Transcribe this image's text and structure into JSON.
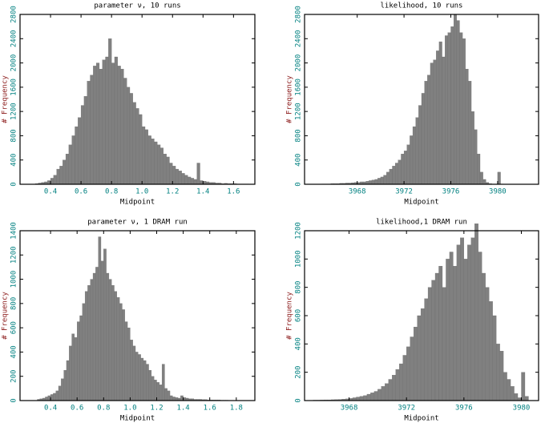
{
  "chart_data": [
    {
      "type": "histogram",
      "title": "parameter ν, 10 runs",
      "x_label": "Midpoint",
      "y_label": "# Frequency",
      "color": "#808080",
      "bins": [
        0.3,
        0.32,
        0.34,
        0.36,
        0.38,
        0.4,
        0.42,
        0.44,
        0.46,
        0.48,
        0.5,
        0.52,
        0.54,
        0.56,
        0.58,
        0.6,
        0.62,
        0.64,
        0.66,
        0.68,
        0.7,
        0.72,
        0.74,
        0.76,
        0.78,
        0.8,
        0.82,
        0.84,
        0.86,
        0.88,
        0.9,
        0.92,
        0.94,
        0.96,
        0.98,
        1,
        1.02,
        1.04,
        1.06,
        1.08,
        1.1,
        1.12,
        1.14,
        1.16,
        1.18,
        1.2,
        1.22,
        1.24,
        1.26,
        1.28,
        1.3,
        1.32,
        1.34,
        1.36,
        1.38,
        1.4,
        1.42,
        1.44,
        1.46,
        1.48,
        1.5,
        1.52,
        1.54,
        1.56,
        1.58,
        1.6,
        1.62,
        1.64,
        1.66,
        1.68,
        1.7
      ],
      "values": [
        10,
        20,
        30,
        40,
        60,
        100,
        150,
        250,
        300,
        400,
        500,
        650,
        800,
        950,
        1100,
        1300,
        1450,
        1700,
        1800,
        1950,
        2000,
        1900,
        2050,
        2100,
        2400,
        2000,
        2100,
        1950,
        1900,
        1750,
        1600,
        1500,
        1350,
        1250,
        1150,
        950,
        900,
        800,
        750,
        700,
        650,
        600,
        500,
        450,
        350,
        300,
        250,
        220,
        180,
        150,
        120,
        100,
        80,
        350,
        60,
        50,
        40,
        30,
        30,
        20,
        20,
        10,
        15,
        10,
        10,
        10,
        5,
        5,
        5,
        5
      ],
      "xlim": [
        0.2,
        1.74
      ],
      "xticks": [
        0.4,
        0.6,
        0.8,
        {
          "value": 1,
          "label": "1.0"
        },
        1.2,
        1.4,
        1.6
      ],
      "ylim": [
        0,
        2800
      ],
      "yticks": [
        0,
        400,
        800,
        1200,
        1600,
        2000,
        2400,
        2800
      ]
    },
    {
      "type": "histogram",
      "title": "likelihood, 10 runs",
      "x_label": "Midpoint",
      "y_label": "# Frequency",
      "color": "#808080",
      "bins": [
        3965,
        3965.25,
        3965.5,
        3965.75,
        3966,
        3966.25,
        3966.5,
        3966.75,
        3967,
        3967.25,
        3967.5,
        3967.75,
        3968,
        3968.25,
        3968.5,
        3968.75,
        3969,
        3969.25,
        3969.5,
        3969.75,
        3970,
        3970.25,
        3970.5,
        3970.75,
        3971,
        3971.25,
        3971.5,
        3971.75,
        3972,
        3972.25,
        3972.5,
        3972.75,
        3973,
        3973.25,
        3973.5,
        3973.75,
        3974,
        3974.25,
        3974.5,
        3974.75,
        3975,
        3975.25,
        3975.5,
        3975.75,
        3976,
        3976.25,
        3976.5,
        3976.75,
        3977,
        3977.25,
        3977.5,
        3977.75,
        3978,
        3978.25,
        3978.5,
        3978.75,
        3979,
        3979.25,
        3979.5,
        3979.75,
        3980,
        3980.25,
        3980.5
      ],
      "values": [
        5,
        5,
        5,
        10,
        10,
        10,
        15,
        15,
        20,
        20,
        25,
        30,
        30,
        40,
        40,
        50,
        60,
        70,
        80,
        100,
        120,
        150,
        200,
        250,
        300,
        350,
        400,
        500,
        550,
        650,
        800,
        950,
        1100,
        1300,
        1500,
        1700,
        1800,
        2000,
        2050,
        2200,
        2350,
        2100,
        2450,
        2500,
        2600,
        2800,
        2700,
        2500,
        2400,
        1900,
        1700,
        1200,
        900,
        500,
        200,
        80,
        30,
        10,
        5,
        5,
        200,
        5
      ],
      "xlim": [
        3963.5,
        3983.5
      ],
      "xticks": [
        3968,
        3972,
        3976,
        3980
      ],
      "ylim": [
        0,
        2800
      ],
      "yticks": [
        0,
        400,
        800,
        1200,
        1600,
        2000,
        2400,
        2800
      ]
    },
    {
      "type": "histogram",
      "title": "parameter ν, 1 DRAM run",
      "x_label": "Midpoint",
      "y_label": "# Frequency",
      "color": "#808080",
      "bins": [
        0.3,
        0.32,
        0.34,
        0.36,
        0.38,
        0.4,
        0.42,
        0.44,
        0.46,
        0.48,
        0.5,
        0.52,
        0.54,
        0.56,
        0.58,
        0.6,
        0.62,
        0.64,
        0.66,
        0.68,
        0.7,
        0.72,
        0.74,
        0.76,
        0.78,
        0.8,
        0.82,
        0.84,
        0.86,
        0.88,
        0.9,
        0.92,
        0.94,
        0.96,
        0.98,
        1,
        1.02,
        1.04,
        1.06,
        1.08,
        1.1,
        1.12,
        1.14,
        1.16,
        1.18,
        1.2,
        1.22,
        1.24,
        1.26,
        1.28,
        1.3,
        1.32,
        1.34,
        1.36,
        1.38,
        1.4,
        1.42,
        1.44,
        1.46,
        1.48,
        1.5,
        1.52,
        1.54,
        1.56,
        1.58,
        1.6,
        1.62,
        1.64,
        1.66,
        1.68,
        1.7,
        1.72,
        1.74,
        1.76,
        1.78,
        1.8,
        1.82,
        1.84,
        1.86,
        1.88,
        1.9
      ],
      "values": [
        10,
        15,
        20,
        30,
        40,
        50,
        60,
        80,
        120,
        180,
        250,
        330,
        450,
        550,
        520,
        650,
        700,
        800,
        900,
        950,
        1000,
        1050,
        1100,
        1350,
        1150,
        1250,
        1050,
        1000,
        950,
        900,
        850,
        800,
        750,
        650,
        600,
        500,
        450,
        400,
        380,
        350,
        330,
        300,
        250,
        200,
        170,
        150,
        130,
        300,
        100,
        80,
        40,
        30,
        25,
        20,
        40,
        25,
        20,
        15,
        15,
        10,
        10,
        10,
        8,
        8,
        5,
        5,
        5,
        5,
        5,
        3,
        3,
        3,
        2,
        2,
        2,
        2,
        1,
        1,
        1,
        1
      ],
      "xlim": [
        0.17,
        1.94
      ],
      "xticks": [
        0.4,
        0.6,
        0.8,
        {
          "value": 1,
          "label": "1.0"
        },
        1.2,
        1.4,
        1.6,
        1.8
      ],
      "ylim": [
        0,
        1400
      ],
      "yticks": [
        0,
        200,
        400,
        600,
        800,
        1000,
        1200,
        1400
      ]
    },
    {
      "type": "histogram",
      "title": "likelihood,1 DRAM run",
      "x_label": "Midpoint",
      "y_label": "# Frequency",
      "color": "#808080",
      "bins": [
        3965,
        3965.25,
        3965.5,
        3965.75,
        3966,
        3966.25,
        3966.5,
        3966.75,
        3967,
        3967.25,
        3967.5,
        3967.75,
        3968,
        3968.25,
        3968.5,
        3968.75,
        3969,
        3969.25,
        3969.5,
        3969.75,
        3970,
        3970.25,
        3970.5,
        3970.75,
        3971,
        3971.25,
        3971.5,
        3971.75,
        3972,
        3972.25,
        3972.5,
        3972.75,
        3973,
        3973.25,
        3973.5,
        3973.75,
        3974,
        3974.25,
        3974.5,
        3974.75,
        3975,
        3975.25,
        3975.5,
        3975.75,
        3976,
        3976.25,
        3976.5,
        3976.75,
        3977,
        3977.25,
        3977.5,
        3977.75,
        3978,
        3978.25,
        3978.5,
        3978.75,
        3979,
        3979.25,
        3979.5,
        3979.75,
        3980,
        3980.25,
        3980.5
      ],
      "values": [
        2,
        2,
        3,
        3,
        4,
        5,
        5,
        6,
        7,
        8,
        10,
        12,
        15,
        20,
        25,
        30,
        35,
        45,
        55,
        65,
        80,
        100,
        120,
        150,
        180,
        220,
        260,
        320,
        380,
        450,
        520,
        600,
        650,
        720,
        800,
        850,
        900,
        950,
        800,
        1000,
        1050,
        950,
        1100,
        1150,
        1000,
        1100,
        1150,
        1250,
        1050,
        900,
        800,
        700,
        600,
        400,
        350,
        200,
        150,
        100,
        50,
        20,
        200,
        30
      ],
      "xlim": [
        3964.9,
        3981.2
      ],
      "xticks": [
        3968,
        3972,
        3976,
        3980
      ],
      "ylim": [
        0,
        1200
      ],
      "yticks": [
        0,
        200,
        400,
        600,
        800,
        1000,
        1200
      ]
    }
  ]
}
